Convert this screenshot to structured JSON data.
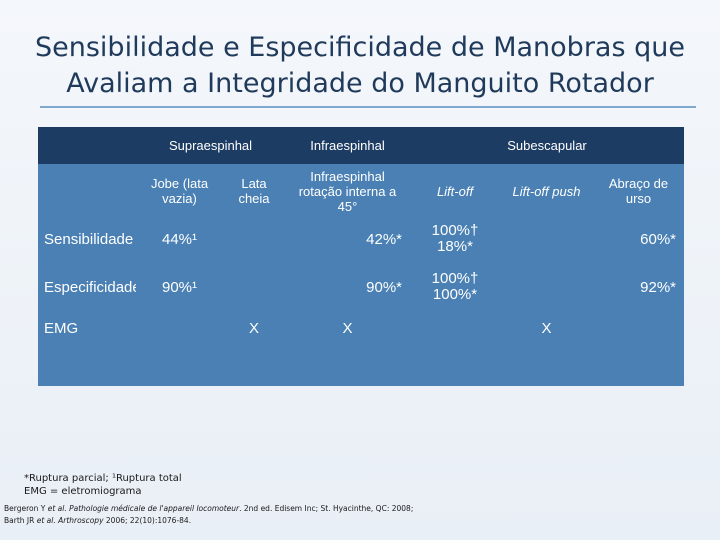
{
  "slide": {
    "title_line1": "Sensibilidade e Especificidade de Manobras que",
    "title_line2": "Avaliam a Integridade do Manguito Rotador"
  },
  "table": {
    "groups": {
      "supraespinhal": "Supraespinhal",
      "infraespinhal": "Infraespinhal",
      "subescapular": "Subescapular"
    },
    "tests": {
      "jobe": "Jobe (lata vazia)",
      "lata_cheia": "Lata cheia",
      "infra_rot": "Infraespinhal rotação interna a 45°",
      "lift_off": "Lift-off",
      "lift_off_push": "Lift-off push",
      "abraco_urso": "Abraço de urso"
    },
    "rows": {
      "sensibilidade": {
        "label": "Sensibilidade",
        "jobe": "44%¹",
        "infra": "42%*",
        "lift_off_1": "100%†",
        "lift_off_2": "18%*",
        "abraco": "60%*"
      },
      "especificidade": {
        "label": "Especificidade",
        "jobe": "90%¹",
        "infra": "90%*",
        "lift_off_1": "100%†",
        "lift_off_2": "100%*",
        "abraco": "92%*"
      },
      "emg": {
        "label": "EMG",
        "lata_cheia": "X",
        "infra": "X",
        "lift_off_push": "X"
      }
    }
  },
  "footnotes": {
    "line1": "*Ruptura parcial; ¹Ruptura total",
    "line2": "EMG = eletromiograma"
  },
  "references": {
    "ref1_author": "Bergeron Y ",
    "ref1_etal": "et al. Pathologie médicale de l'appareil locomoteur",
    "ref1_rest": ". 2nd ed. Edisem Inc; St. Hyacinthe, QC: 2008;",
    "ref2_author": "Barth JR ",
    "ref2_etal": "et al. Arthroscopy",
    "ref2_rest": " 2006; 22(10):1076-84."
  }
}
